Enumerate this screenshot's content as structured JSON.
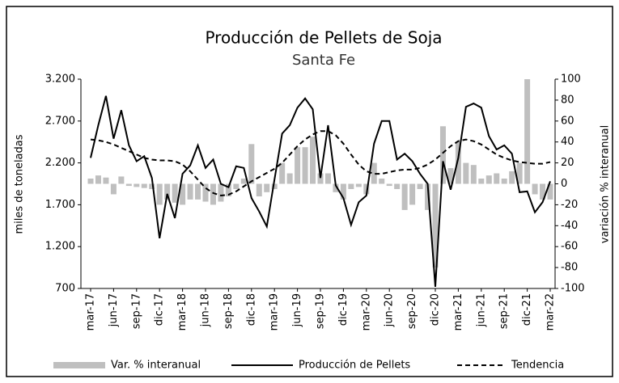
{
  "chart_data": {
    "type": "combo",
    "title": "Producción de Pellets de Soja",
    "subtitle": "Santa Fe",
    "y_label": "miles de toneladas",
    "y2_label": "variación % interanual",
    "categories": [
      "mar-17",
      null,
      null,
      "jun-17",
      null,
      null,
      "sep-17",
      null,
      null,
      "dic-17",
      null,
      null,
      "mar-18",
      null,
      null,
      "jun-18",
      null,
      null,
      "sep-18",
      null,
      null,
      "dic-18",
      null,
      null,
      "mar-19",
      null,
      null,
      "jun-19",
      null,
      null,
      "sep-19",
      null,
      null,
      "dic-19",
      null,
      null,
      "mar-20",
      null,
      null,
      "jun-20",
      null,
      null,
      "sep-20",
      null,
      null,
      "dic-20",
      null,
      null,
      "mar-21",
      null,
      null,
      "jun-21",
      null,
      null,
      "sep-21",
      null,
      null,
      "dic-21",
      null,
      null,
      "mar-22"
    ],
    "ylim": [
      700,
      3200
    ],
    "yticks": [
      700,
      {
        "value": 1200,
        "label": "1.200"
      },
      {
        "value": 1700,
        "label": "1.700"
      },
      {
        "value": 2200,
        "label": "2.200"
      },
      {
        "value": 2700,
        "label": "2.700"
      },
      {
        "value": 3200,
        "label": "3.200"
      }
    ],
    "y2lim": [
      -100,
      100
    ],
    "y2ticks": [
      -100,
      -80,
      -60,
      -40,
      -20,
      0,
      20,
      40,
      60,
      80,
      100
    ],
    "series": [
      {
        "name": "Var. % interanual",
        "type": "bar",
        "axis": "y2",
        "color": "#bfbfbf",
        "values": [
          5,
          8,
          6,
          -10,
          7,
          -2,
          -3,
          -4,
          -5,
          -20,
          -15,
          -18,
          -20,
          -15,
          -15,
          -17,
          -20,
          -17,
          -12,
          -5,
          5,
          38,
          -12,
          -8,
          -5,
          20,
          10,
          35,
          35,
          45,
          10,
          10,
          -8,
          -15,
          -5,
          -3,
          -10,
          20,
          5,
          -2,
          -5,
          -25,
          -20,
          -5,
          -25,
          -80,
          55,
          15,
          40,
          20,
          18,
          5,
          8,
          10,
          5,
          12,
          20,
          100,
          -10,
          -15,
          -15
        ]
      },
      {
        "name": "Producción de Pellets",
        "type": "line",
        "axis": "y",
        "color": "#000000",
        "style": "solid",
        "values": [
          2260,
          2650,
          3000,
          2490,
          2830,
          2410,
          2220,
          2280,
          2020,
          1300,
          1830,
          1540,
          2070,
          2170,
          2410,
          2140,
          2240,
          1950,
          1910,
          2160,
          2140,
          1780,
          1620,
          1440,
          2000,
          2550,
          2650,
          2860,
          2970,
          2840,
          2020,
          2650,
          1930,
          1780,
          1460,
          1730,
          1810,
          2430,
          2700,
          2700,
          2240,
          2310,
          2220,
          2070,
          1950,
          720,
          2220,
          1880,
          2260,
          2870,
          2910,
          2860,
          2520,
          2360,
          2410,
          2310,
          1850,
          1860,
          1610,
          1730,
          1980
        ]
      },
      {
        "name": "Tendencia",
        "type": "line",
        "axis": "y",
        "color": "#000000",
        "style": "dashed",
        "values": [
          2480,
          2470,
          2450,
          2420,
          2380,
          2340,
          2300,
          2260,
          2240,
          2230,
          2230,
          2220,
          2180,
          2100,
          2000,
          1900,
          1840,
          1810,
          1820,
          1860,
          1920,
          1980,
          2030,
          2080,
          2130,
          2200,
          2300,
          2400,
          2480,
          2540,
          2580,
          2580,
          2530,
          2430,
          2300,
          2180,
          2100,
          2070,
          2070,
          2090,
          2110,
          2120,
          2120,
          2140,
          2180,
          2240,
          2320,
          2400,
          2460,
          2480,
          2460,
          2420,
          2360,
          2300,
          2260,
          2230,
          2210,
          2200,
          2190,
          2190,
          2210
        ]
      }
    ],
    "legend": "bottom"
  }
}
